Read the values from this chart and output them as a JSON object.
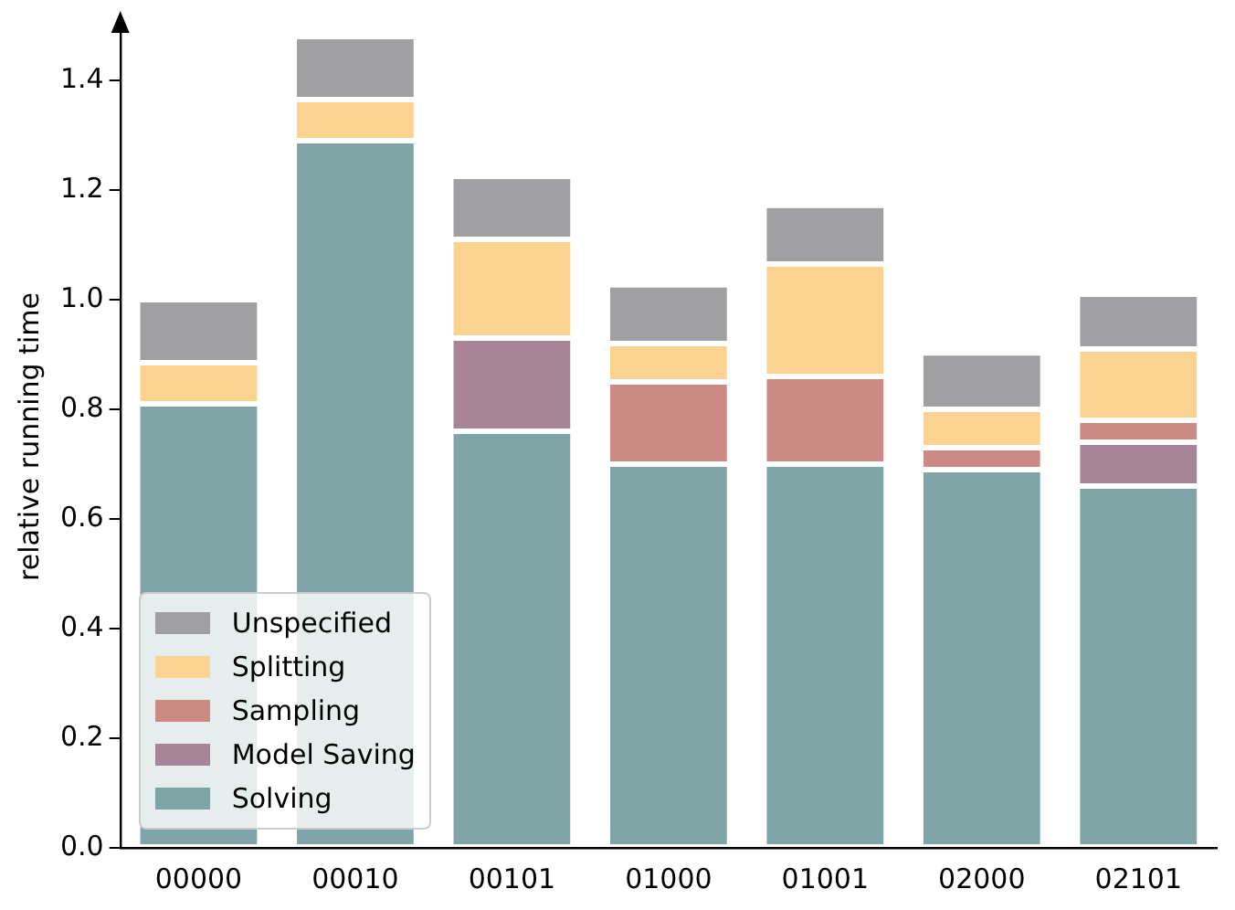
{
  "chart_data": {
    "type": "bar",
    "stacked": true,
    "ylabel": "relative running time",
    "categories": [
      "00000",
      "00010",
      "00101",
      "01000",
      "01001",
      "02000",
      "02101"
    ],
    "series": [
      {
        "name": "Solving",
        "color": "#7fa5a6",
        "values": [
          0.81,
          1.29,
          0.76,
          0.7,
          0.7,
          0.69,
          0.66
        ]
      },
      {
        "name": "Model Saving",
        "color": "#a88499",
        "values": [
          0,
          0,
          0.17,
          0,
          0,
          0,
          0.08
        ]
      },
      {
        "name": "Sampling",
        "color": "#cd8a84",
        "values": [
          0,
          0,
          0,
          0.15,
          0.16,
          0.04,
          0.04
        ]
      },
      {
        "name": "Splitting",
        "color": "#fcd290",
        "values": [
          0.075,
          0.075,
          0.18,
          0.07,
          0.205,
          0.07,
          0.13
        ]
      },
      {
        "name": "Unspecified",
        "color": "#a0a0a2",
        "values": [
          0.115,
          0.115,
          0.115,
          0.107,
          0.107,
          0.103,
          0.1
        ]
      }
    ],
    "ylim": [
      0,
      1.5
    ],
    "yticks": [
      {
        "value": 0,
        "label": "0.0"
      },
      {
        "value": 0.2,
        "label": "0.2"
      },
      {
        "value": 0.4,
        "label": "0.4"
      },
      {
        "value": 0.6,
        "label": "0.6"
      },
      {
        "value": 0.8,
        "label": "0.8"
      },
      {
        "value": 1.0,
        "label": "1.0"
      },
      {
        "value": 1.2,
        "label": "1.2"
      },
      {
        "value": 1.4,
        "label": "1.4"
      }
    ],
    "grid": false,
    "legend": "bottom left"
  }
}
